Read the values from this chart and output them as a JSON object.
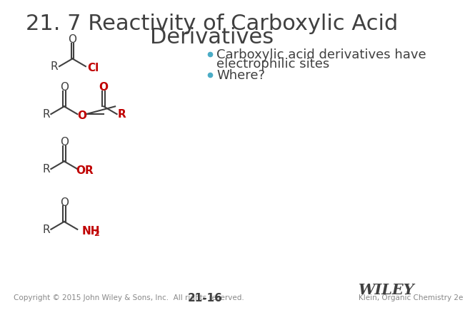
{
  "title_line1": "21. 7 Reactivity of Carboxylic Acid",
  "title_line2": "Derivatives",
  "title_fontsize": 22,
  "title_color": "#404040",
  "bullet1a": "Carboxylic acid derivatives have",
  "bullet1b": "electrophilic sites",
  "bullet2": "Where?",
  "bullet_color": "#404040",
  "bullet_fontsize": 13,
  "bullet_dot_color": "#4BACC6",
  "red_color": "#C00000",
  "black_color": "#404040",
  "background_color": "#FFFFFF",
  "footer_left": "Copyright © 2015 John Wiley & Sons, Inc.  All rights reserved.",
  "footer_center": "21-16",
  "footer_right": "Klein, Organic Chemistry 2e",
  "wiley_text": "WILEY",
  "footer_fontsize": 7.5,
  "page_fontsize": 11
}
